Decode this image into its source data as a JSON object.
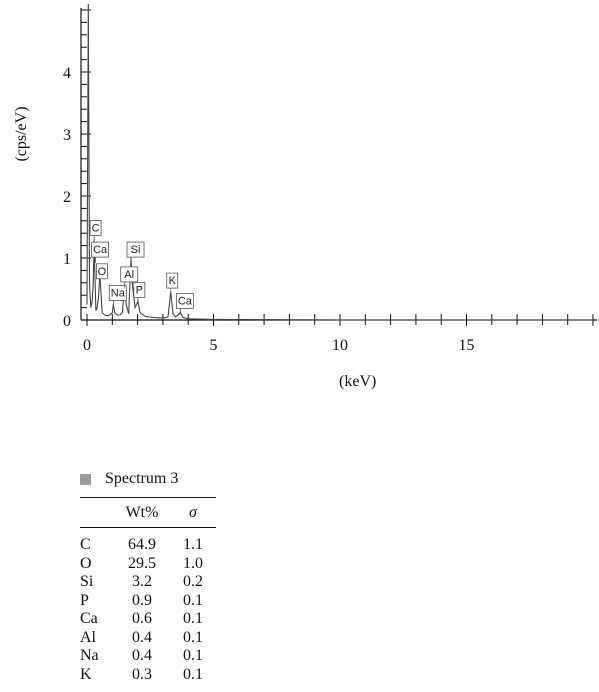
{
  "chart_data": {
    "type": "line",
    "xlabel": "(keV)",
    "ylabel": "(cps/eV)",
    "xlim": [
      -0.5,
      20
    ],
    "ylim": [
      0,
      5
    ],
    "x_ticks": [
      "0",
      "5",
      "10",
      "15"
    ],
    "y_ticks": [
      "0",
      "1",
      "2",
      "3",
      "4"
    ],
    "legend": [
      "Spectrum 3"
    ],
    "series": [
      {
        "name": "Spectrum 3",
        "x": [
          0.0,
          0.05,
          0.1,
          0.15,
          0.2,
          0.25,
          0.28,
          0.3,
          0.35,
          0.4,
          0.45,
          0.5,
          0.53,
          0.55,
          0.6,
          0.7,
          0.8,
          0.9,
          1.0,
          1.04,
          1.1,
          1.2,
          1.3,
          1.4,
          1.49,
          1.55,
          1.65,
          1.74,
          1.8,
          1.9,
          2.01,
          2.1,
          2.3,
          2.6,
          3.0,
          3.2,
          3.31,
          3.4,
          3.5,
          3.69,
          3.8,
          4.0,
          5.0,
          10.0,
          15.0,
          20.0
        ],
        "y": [
          0.25,
          5.1,
          0.6,
          0.2,
          0.3,
          0.6,
          1.3,
          0.9,
          0.15,
          0.2,
          0.35,
          0.7,
          0.6,
          0.45,
          0.12,
          0.08,
          0.07,
          0.08,
          0.12,
          0.25,
          0.12,
          0.08,
          0.08,
          0.12,
          0.55,
          0.25,
          0.1,
          1.0,
          0.55,
          0.2,
          0.3,
          0.12,
          0.06,
          0.04,
          0.03,
          0.05,
          0.45,
          0.1,
          0.05,
          0.12,
          0.04,
          0.02,
          0.01,
          0.0,
          0.0,
          0.0
        ]
      }
    ],
    "peak_labels": [
      {
        "text": "C",
        "x": 0.28,
        "y": 1.3
      },
      {
        "text": "Ca",
        "x": 0.34,
        "y": 0.95
      },
      {
        "text": "O",
        "x": 0.53,
        "y": 0.6
      },
      {
        "text": "Na",
        "x": 1.04,
        "y": 0.25
      },
      {
        "text": "Al",
        "x": 1.49,
        "y": 0.55
      },
      {
        "text": "Si",
        "x": 1.74,
        "y": 0.95
      },
      {
        "text": "P",
        "x": 2.01,
        "y": 0.3
      },
      {
        "text": "K",
        "x": 3.31,
        "y": 0.45
      },
      {
        "text": "Ca",
        "x": 3.69,
        "y": 0.12
      }
    ]
  },
  "table": {
    "headers": [
      "",
      "Wt%",
      "σ"
    ],
    "rows": [
      [
        "C",
        "64.9",
        "1.1"
      ],
      [
        "O",
        "29.5",
        "1.0"
      ],
      [
        "Si",
        "3.2",
        "0.2"
      ],
      [
        "P",
        "0.9",
        "0.1"
      ],
      [
        "Ca",
        "0.6",
        "0.1"
      ],
      [
        "Al",
        "0.4",
        "0.1"
      ],
      [
        "Na",
        "0.4",
        "0.1"
      ],
      [
        "K",
        "0.3",
        "0.1"
      ]
    ]
  },
  "colors": {
    "axis": "#111111",
    "spectrum_line": "#444444",
    "legend_swatch": "#9a9a9a"
  }
}
